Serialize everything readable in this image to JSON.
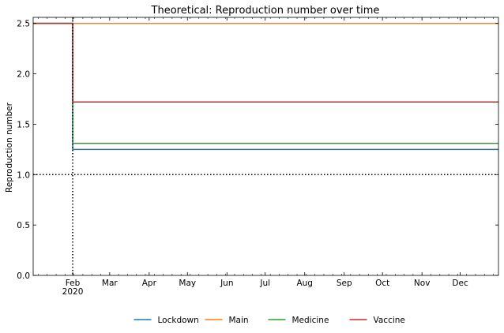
{
  "chart_data": {
    "type": "line",
    "title": "Theoretical: Reproduction number over time",
    "xlabel": "",
    "ylabel": "Reproduction number",
    "x_range": [
      "2020-01-01",
      "2020-12-31"
    ],
    "ylim": [
      0,
      2.56
    ],
    "y_ticks": [
      0.0,
      0.5,
      1.0,
      1.5,
      2.0,
      2.5
    ],
    "y_tick_labels": [
      "0.0",
      "0.5",
      "1.0",
      "1.5",
      "2.0",
      "2.5"
    ],
    "x_ticks": [
      {
        "date": "2020-02-01",
        "label": "Feb",
        "sublabel": "2020"
      },
      {
        "date": "2020-03-01",
        "label": "Mar"
      },
      {
        "date": "2020-04-01",
        "label": "Apr"
      },
      {
        "date": "2020-05-01",
        "label": "May"
      },
      {
        "date": "2020-06-01",
        "label": "Jun"
      },
      {
        "date": "2020-07-01",
        "label": "Jul"
      },
      {
        "date": "2020-08-01",
        "label": "Aug"
      },
      {
        "date": "2020-09-01",
        "label": "Sep"
      },
      {
        "date": "2020-10-01",
        "label": "Oct"
      },
      {
        "date": "2020-11-01",
        "label": "Nov"
      },
      {
        "date": "2020-12-01",
        "label": "Dec"
      }
    ],
    "reference_lines": [
      {
        "axis": "y",
        "value": 1.0,
        "style": "dotted",
        "color": "#000000"
      },
      {
        "axis": "x",
        "value": "2020-02-01",
        "style": "dotted",
        "color": "#000000"
      }
    ],
    "legend_position": "bottom",
    "grid": false,
    "series": [
      {
        "name": "Lockdown",
        "color": "#1f77b4",
        "points": [
          [
            "2020-01-01",
            2.5
          ],
          [
            "2020-02-01",
            2.5
          ],
          [
            "2020-02-01",
            1.25
          ],
          [
            "2020-12-31",
            1.25
          ]
        ]
      },
      {
        "name": "Main",
        "color": "#ff7f0e",
        "points": [
          [
            "2020-01-01",
            2.5
          ],
          [
            "2020-12-31",
            2.5
          ]
        ]
      },
      {
        "name": "Medicine",
        "color": "#2ca02c",
        "points": [
          [
            "2020-01-01",
            2.5
          ],
          [
            "2020-02-01",
            2.5
          ],
          [
            "2020-02-01",
            1.31
          ],
          [
            "2020-12-31",
            1.31
          ]
        ]
      },
      {
        "name": "Vaccine",
        "color": "#d62728",
        "points": [
          [
            "2020-01-01",
            2.5
          ],
          [
            "2020-02-01",
            2.5
          ],
          [
            "2020-02-01",
            1.72
          ],
          [
            "2020-12-31",
            1.72
          ]
        ]
      }
    ]
  }
}
